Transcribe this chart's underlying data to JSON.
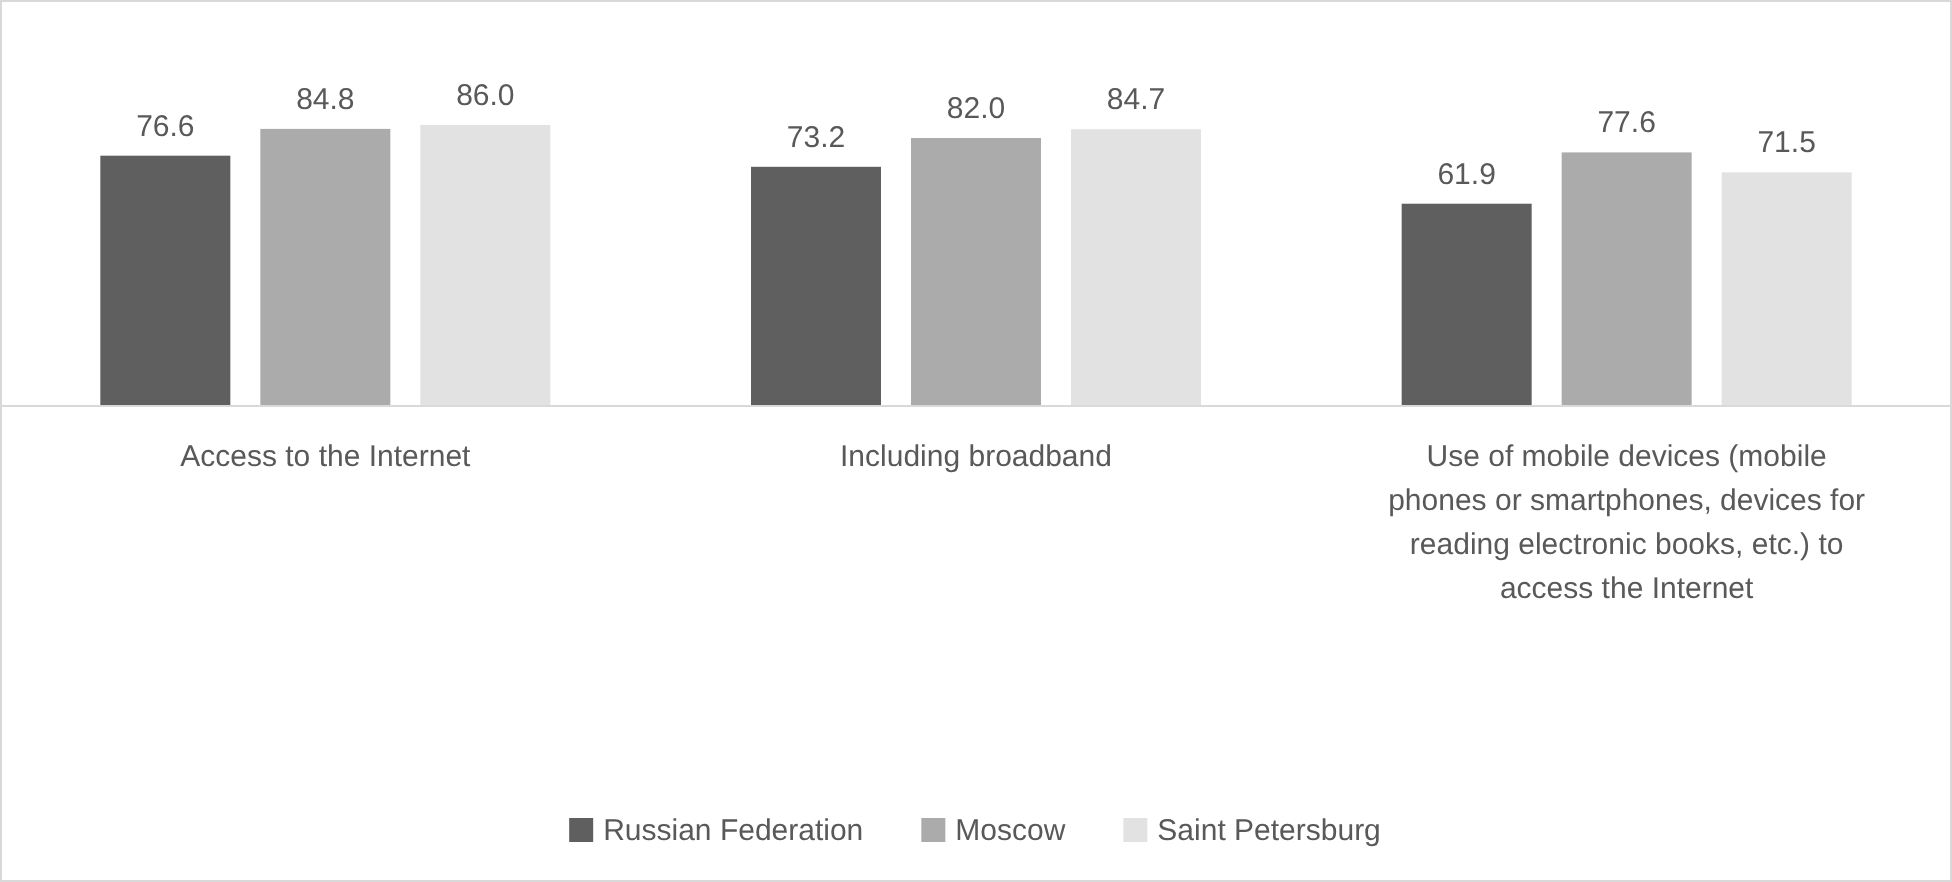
{
  "chart_data": {
    "type": "bar",
    "categories": [
      "Access to the Internet",
      "Including broadband",
      "Use of mobile devices (mobile phones or smartphones, devices for reading electronic books, etc.) to access the Internet"
    ],
    "series": [
      {
        "name": "Russian Federation",
        "color": "#5f5f5f",
        "values": [
          76.6,
          73.2,
          61.9
        ],
        "value_labels": [
          "76.6",
          "73.2",
          "61.9"
        ]
      },
      {
        "name": "Moscow",
        "color": "#ababab",
        "values": [
          84.8,
          82.0,
          77.6
        ],
        "value_labels": [
          "84.8",
          "82.0",
          "77.6"
        ]
      },
      {
        "name": "Saint Petersburg",
        "color": "#e2e2e2",
        "values": [
          86.0,
          84.7,
          71.5
        ],
        "value_labels": [
          "86.0",
          "84.7",
          "71.5"
        ]
      }
    ],
    "legend": "bottom"
  }
}
